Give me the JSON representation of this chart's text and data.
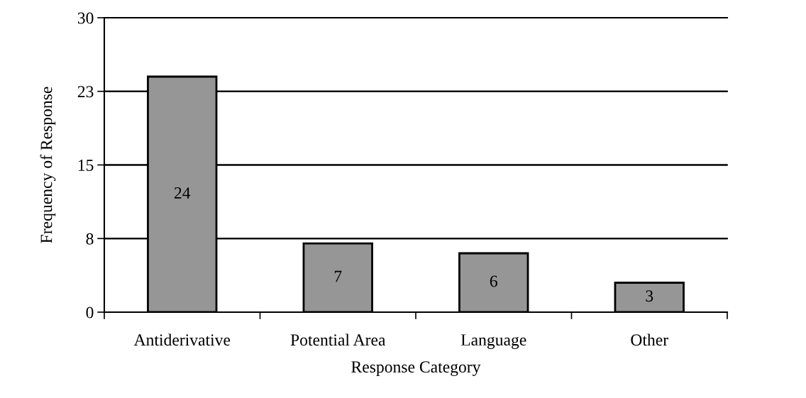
{
  "chart_data": {
    "type": "bar",
    "xlabel": "Response Category",
    "ylabel": "Frequency of Response",
    "categories": [
      "Antiderivative",
      "Potential Area",
      "Language",
      "Other"
    ],
    "values": [
      24,
      7,
      6,
      3
    ],
    "color": "#969696",
    "ylim": [
      0,
      30
    ],
    "yticks": [
      0,
      {
        "value": 7.5,
        "label": "8"
      },
      15,
      {
        "value": 22.5,
        "label": "23"
      },
      30
    ],
    "grid": "y",
    "data_labels": true,
    "legend": false
  }
}
